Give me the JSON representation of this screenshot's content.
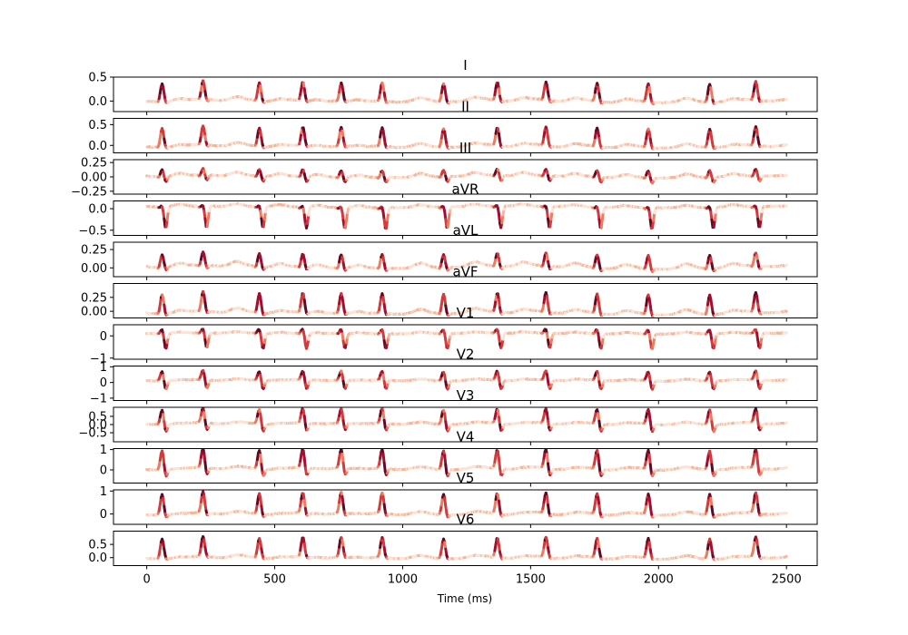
{
  "chart_data": {
    "type": "line",
    "description_axis": "shared-x",
    "xlabel": "Time (ms)",
    "xlim": [
      -130,
      2620
    ],
    "xticks": [
      0,
      500,
      1000,
      1500,
      2000,
      2500
    ],
    "xtick_labels": [
      "0",
      "500",
      "1000",
      "1500",
      "2000",
      "2500"
    ],
    "beats_ms": [
      60,
      220,
      440,
      610,
      760,
      920,
      1160,
      1370,
      1560,
      1760,
      1960,
      2200,
      2380
    ],
    "colormap": [
      "#fbe3d6",
      "#f7b59a",
      "#ee7b5f",
      "#d33a3c",
      "#a10e2e",
      "#5c0a26"
    ],
    "leads": [
      {
        "name": "I",
        "ylim": [
          -0.22,
          0.5
        ],
        "yticks": [
          -0.0,
          0.5
        ],
        "ytick_labels": [
          "0.0",
          "0.5"
        ],
        "baseline": -0.02,
        "r_amp": 0.38,
        "s_amp": -0.05
      },
      {
        "name": "II",
        "ylim": [
          -0.18,
          0.65
        ],
        "yticks": [
          0.0,
          0.5
        ],
        "ytick_labels": [
          "0.0",
          "0.5"
        ],
        "baseline": -0.05,
        "r_amp": 0.45,
        "s_amp": -0.05
      },
      {
        "name": "III",
        "ylim": [
          -0.3,
          0.3
        ],
        "yticks": [
          -0.25,
          0.0,
          0.25
        ],
        "ytick_labels": [
          "−0.25",
          "0.00",
          "0.25"
        ],
        "baseline": 0.0,
        "r_amp": 0.12,
        "s_amp": -0.1
      },
      {
        "name": "aVR",
        "ylim": [
          -0.62,
          0.18
        ],
        "yticks": [
          -0.5,
          0.0
        ],
        "ytick_labels": [
          "−0.5",
          "0.0"
        ],
        "baseline": 0.04,
        "r_amp": 0.03,
        "s_amp": -0.5
      },
      {
        "name": "aVL",
        "ylim": [
          -0.12,
          0.35
        ],
        "yticks": [
          0.0,
          0.25
        ],
        "ytick_labels": [
          "0.00",
          "0.25"
        ],
        "baseline": 0.0,
        "r_amp": 0.18,
        "s_amp": -0.05
      },
      {
        "name": "aVF",
        "ylim": [
          -0.12,
          0.5
        ],
        "yticks": [
          0.0,
          0.25
        ],
        "ytick_labels": [
          "0.00",
          "0.25"
        ],
        "baseline": -0.05,
        "r_amp": 0.35,
        "s_amp": -0.05
      },
      {
        "name": "V1",
        "ylim": [
          -1.05,
          0.5
        ],
        "yticks": [
          -1,
          0
        ],
        "ytick_labels": [
          "−1",
          "0"
        ],
        "baseline": 0.1,
        "r_amp": 0.2,
        "s_amp": -0.7
      },
      {
        "name": "V2",
        "ylim": [
          -1.15,
          1.05
        ],
        "yticks": [
          -1,
          0,
          1
        ],
        "ytick_labels": [
          "−1",
          "0",
          "1"
        ],
        "baseline": 0.1,
        "r_amp": 0.6,
        "s_amp": -0.6
      },
      {
        "name": "V3",
        "ylim": [
          -1.05,
          1.05
        ],
        "yticks": [
          -0.5,
          0.0,
          0.5
        ],
        "ytick_labels": [
          "−0.5",
          "0.0",
          "0.5"
        ],
        "baseline": 0.0,
        "r_amp": 0.9,
        "s_amp": -0.5
      },
      {
        "name": "V4",
        "ylim": [
          -0.65,
          1.05
        ],
        "yticks": [
          0,
          1
        ],
        "ytick_labels": [
          "0",
          "1"
        ],
        "baseline": 0.0,
        "r_amp": 0.95,
        "s_amp": -0.4
      },
      {
        "name": "V5",
        "ylim": [
          -0.45,
          1.05
        ],
        "yticks": [
          0,
          1
        ],
        "ytick_labels": [
          "0",
          "1"
        ],
        "baseline": -0.05,
        "r_amp": 0.9,
        "s_amp": -0.15
      },
      {
        "name": "V6",
        "ylim": [
          -0.3,
          1.0
        ],
        "yticks": [
          0.0,
          0.5
        ],
        "ytick_labels": [
          "0.0",
          "0.5"
        ],
        "baseline": -0.05,
        "r_amp": 0.75,
        "s_amp": -0.05
      }
    ]
  }
}
